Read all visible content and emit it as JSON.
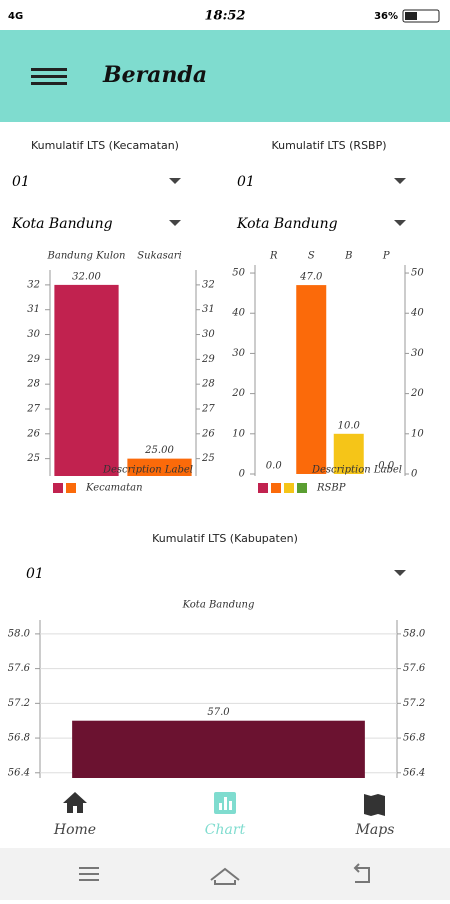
{
  "status_bar": {
    "network": "4G",
    "time": "18:52",
    "battery": "36%"
  },
  "app_bar": {
    "title": "Beranda"
  },
  "sections": [
    {
      "label": "Kumulatif LTS (Kecamatan)",
      "dropdowns": [
        "01",
        "Kota Bandung"
      ],
      "chart_data": {
        "type": "bar",
        "categories": [
          "Bandung Kulon",
          "Sukasari"
        ],
        "values": [
          32,
          25
        ],
        "value_labels": [
          "32.00",
          "25.00"
        ],
        "colors": [
          "#c1224f",
          "#fb6a0a"
        ],
        "ylim": [
          24.3,
          32.6
        ],
        "yticks": [
          25,
          26,
          27,
          28,
          29,
          30,
          31,
          32
        ],
        "grid": false,
        "description": "Description Label",
        "legend": "Kecamatan"
      }
    },
    {
      "label": "Kumulatif LTS (RSBP)",
      "dropdowns": [
        "01",
        "Kota Bandung"
      ],
      "chart_data": {
        "type": "bar",
        "categories": [
          "R",
          "S",
          "B",
          "P"
        ],
        "values": [
          0,
          47,
          10,
          0
        ],
        "value_labels": [
          "0.0",
          "47.0",
          "10.0",
          "0.0"
        ],
        "colors": [
          "#c1224f",
          "#fb6a0a",
          "#f5c518",
          "#5a9e31"
        ],
        "ylim": [
          -0.5,
          52
        ],
        "yticks": [
          0,
          10,
          20,
          30,
          40,
          50
        ],
        "grid": false,
        "description": "Description Label",
        "legend": "RSBP"
      }
    },
    {
      "label": "Kumulatif LTS (Kabupaten)",
      "dropdowns": [
        "01"
      ],
      "chart_data": {
        "type": "bar",
        "categories": [
          "Kota Bandung"
        ],
        "values": [
          57
        ],
        "value_labels": [
          "57.0"
        ],
        "colors": [
          "#6b1230"
        ],
        "ylim": [
          56.34,
          58.16
        ],
        "yticks": [
          {
            "value": 58,
            "label": "58.0"
          },
          57.6,
          57.2,
          56.8,
          56.4
        ],
        "grid": true
      }
    }
  ],
  "bottom_nav": [
    "Home",
    "Chart",
    "Maps"
  ]
}
